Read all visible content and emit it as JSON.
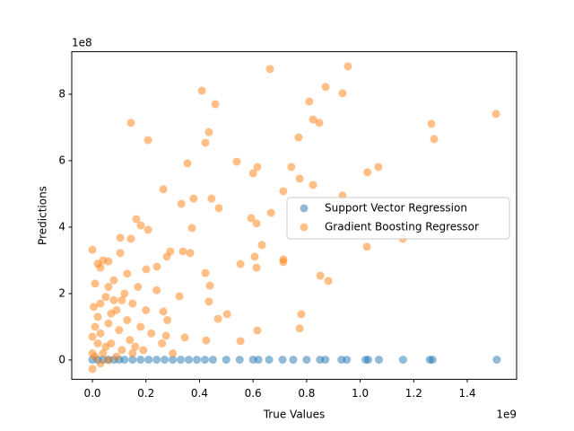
{
  "chart_data": {
    "type": "scatter",
    "xlabel": "True Values",
    "ylabel": "Predictions",
    "x_offset_label": "1e9",
    "y_offset_label": "1e8",
    "xlim": [
      -0.077,
      1.584
    ],
    "ylim": [
      -0.58,
      9.28
    ],
    "xticks": [
      {
        "value": 0,
        "label": "0.0"
      },
      0.2,
      0.4,
      0.6,
      0.8,
      {
        "value": 1,
        "label": "1.0"
      },
      1.2,
      1.4
    ],
    "yticks": [
      0,
      2,
      4,
      6,
      8
    ],
    "grid": false,
    "legend": "center right",
    "series": [
      {
        "name": "Support Vector Regression",
        "color": "#1f77b4",
        "x": [
          0.0,
          0.02,
          0.04,
          0.06,
          0.08,
          0.1,
          0.12,
          0.15,
          0.18,
          0.21,
          0.24,
          0.27,
          0.3,
          0.33,
          0.36,
          0.39,
          0.42,
          0.45,
          0.5,
          0.55,
          0.6,
          0.62,
          0.66,
          0.71,
          0.75,
          0.8,
          0.85,
          0.87,
          0.93,
          0.95,
          1.02,
          1.03,
          1.07,
          1.16,
          1.26,
          1.27,
          1.51
        ],
        "values": [
          0.01,
          0.01,
          0.01,
          0.01,
          0.01,
          0.01,
          0.01,
          0.01,
          0.01,
          0.01,
          0.01,
          0.01,
          0.01,
          0.01,
          0.01,
          0.01,
          0.01,
          0.01,
          0.01,
          0.01,
          0.01,
          0.01,
          0.01,
          0.01,
          0.01,
          0.01,
          0.01,
          0.01,
          0.01,
          0.01,
          0.01,
          0.01,
          0.01,
          0.01,
          0.01,
          0.01,
          0.01
        ]
      },
      {
        "name": "Gradient Boosting Regressor",
        "color": "#ff7f0e",
        "x": [
          0.663,
          0.954,
          0.409,
          0.871,
          0.934,
          0.144,
          0.459,
          0.81,
          0.824,
          0.847,
          1.266,
          1.507,
          1.276,
          0.208,
          0.435,
          0.422,
          0.77,
          0.355,
          0.539,
          0.616,
          0.6,
          0.743,
          0.774,
          0.824,
          1.068,
          1.027,
          0.265,
          0.378,
          0.445,
          0.472,
          0.332,
          0.934,
          0.713,
          0.667,
          0.372,
          0.593,
          0.613,
          0.633,
          0.606,
          0.553,
          0.613,
          0.713,
          0.713,
          0.851,
          0.881,
          1.025,
          1.159,
          0.78,
          0.774,
          0.616,
          0.553,
          0.425,
          0.503,
          0.469,
          0.435,
          0.439,
          0.422,
          0.365,
          0.338,
          0.291,
          0.278,
          0.164,
          0.181,
          0.208,
          0.144,
          0.104,
          0.104,
          0.03,
          0.0,
          0.06,
          0.241,
          0.201,
          0.325,
          0.265,
          0.345,
          0.275,
          0.0,
          0.01,
          0.02,
          0.0,
          0.005,
          0.01,
          0.02,
          0.03,
          0.04,
          0.05,
          0.06,
          0.07,
          0.08,
          0.09,
          0.1,
          0.11,
          0.12,
          0.13,
          0.14,
          0.15,
          0.16,
          0.17,
          0.18,
          0.19,
          0.2,
          0.22,
          0.24,
          0.26,
          0.28,
          0.3,
          0.02,
          0.04,
          0.06,
          0.08,
          0.0,
          0.01,
          0.03,
          0.05,
          0.07,
          0.09,
          0.11,
          0.13,
          0.15,
          0.03,
          0.06
        ],
        "values": [
          8.76,
          8.84,
          8.11,
          8.22,
          8.03,
          7.14,
          7.7,
          7.78,
          7.24,
          7.14,
          7.11,
          7.41,
          6.65,
          6.62,
          6.86,
          6.54,
          6.7,
          5.92,
          5.97,
          5.81,
          5.62,
          5.81,
          5.46,
          5.27,
          5.81,
          5.65,
          5.14,
          4.86,
          4.86,
          4.57,
          4.7,
          4.95,
          5.08,
          4.43,
          3.97,
          4.27,
          4.11,
          3.46,
          3.11,
          2.89,
          2.78,
          3.03,
          2.95,
          2.54,
          2.38,
          3.41,
          3.65,
          1.38,
          0.95,
          0.89,
          0.57,
          0.59,
          1.38,
          1.24,
          1.76,
          2.24,
          2.62,
          3.22,
          3.27,
          3.27,
          3.11,
          4.24,
          4.05,
          3.92,
          3.65,
          3.68,
          3.22,
          2.78,
          3.32,
          2.97,
          2.81,
          2.73,
          1.92,
          1.46,
          0.68,
          0.73,
          0.2,
          1.0,
          0.5,
          -0.27,
          1.6,
          2.3,
          1.3,
          0.8,
          0.2,
          1.9,
          1.1,
          0.5,
          2.4,
          1.5,
          0.9,
          0.3,
          2.0,
          1.2,
          0.6,
          1.7,
          0.4,
          2.2,
          1.0,
          0.3,
          1.5,
          0.8,
          2.1,
          0.5,
          1.2,
          0.2,
          2.9,
          3.0,
          2.2,
          1.8,
          0.7,
          0.1,
          1.7,
          0.4,
          1.4,
          0.1,
          1.8,
          2.6,
          0.2,
          -0.1,
          0.0
        ]
      }
    ]
  }
}
